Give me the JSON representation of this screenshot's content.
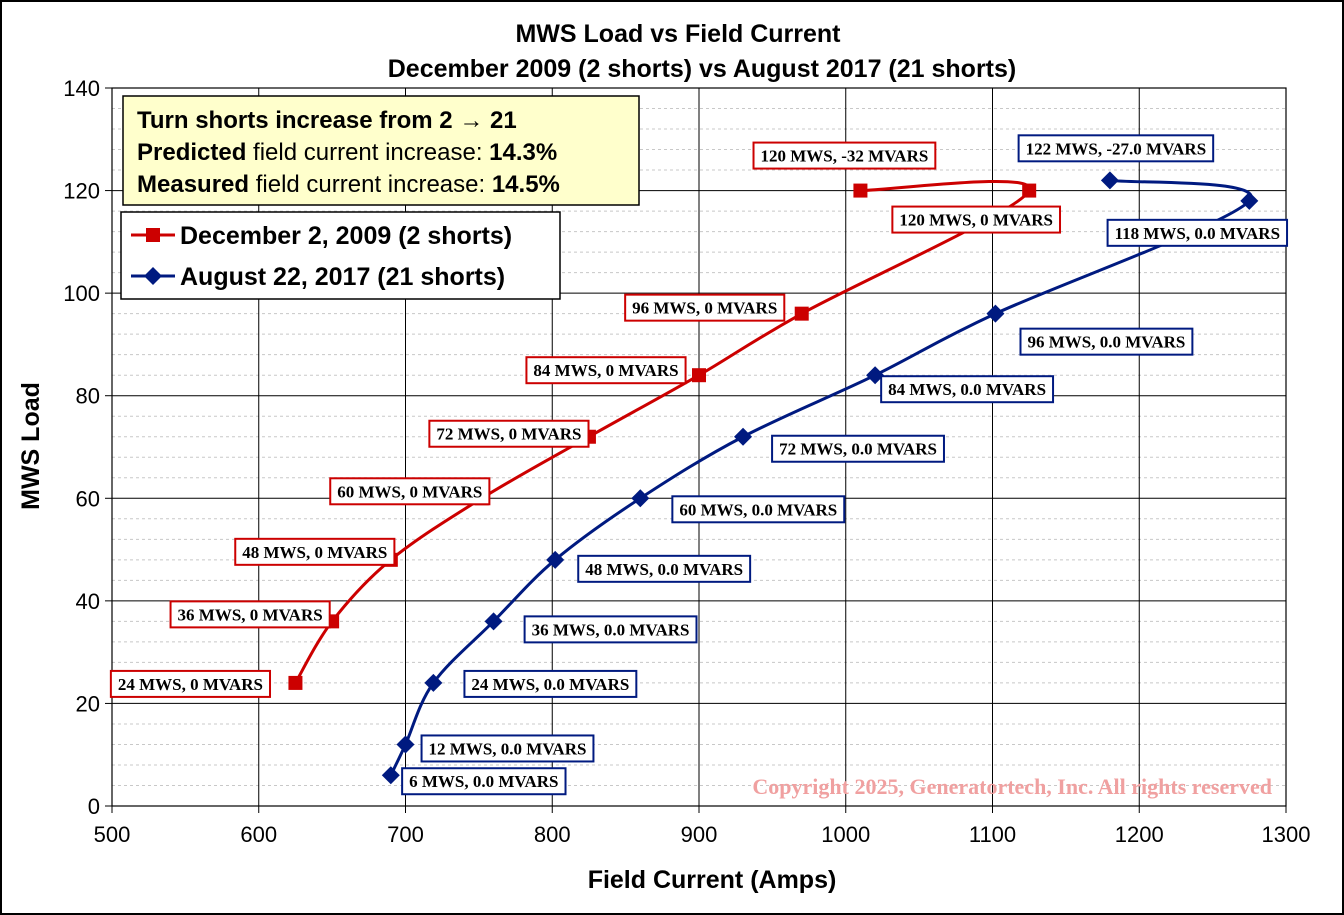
{
  "chart_data": {
    "type": "line",
    "title": "MWS  Load vs Field Current",
    "subtitle": "December 2009 (2 shorts) vs August 2017 (21 shorts)",
    "xlabel": "Field Current (Amps)",
    "ylabel": "MWS Load",
    "xlim": [
      500,
      1300
    ],
    "ylim": [
      0,
      140
    ],
    "xticks": [
      500,
      600,
      700,
      800,
      900,
      1000,
      1100,
      1200,
      1300
    ],
    "yticks": [
      0,
      20,
      40,
      60,
      80,
      100,
      120,
      140
    ],
    "grid": true,
    "legend_position": "top-left",
    "series": [
      {
        "name": "December 2, 2009 (2 shorts)",
        "color": "#cc0000",
        "marker": "square",
        "points": [
          {
            "x": 625,
            "y": 24,
            "label": "24 MWS, 0 MVARS"
          },
          {
            "x": 650,
            "y": 36,
            "label": "36 MWS, 0 MVARS"
          },
          {
            "x": 690,
            "y": 48,
            "label": "48 MWS, 0 MVARS"
          },
          {
            "x": 752,
            "y": 60,
            "label": "60 MWS, 0 MVARS"
          },
          {
            "x": 825,
            "y": 72,
            "label": "72 MWS, 0 MVARS"
          },
          {
            "x": 900,
            "y": 84,
            "label": "84 MWS, 0 MVARS"
          },
          {
            "x": 970,
            "y": 96,
            "label": "96 MWS, 0 MVARS"
          },
          {
            "x": 1125,
            "y": 120,
            "label": "120 MWS, 0 MVARS"
          },
          {
            "x": 1010,
            "y": 120,
            "label": "120 MWS, -32 MVARS"
          }
        ]
      },
      {
        "name": "August 22, 2017 (21 shorts)",
        "color": "#001a80",
        "marker": "diamond",
        "points": [
          {
            "x": 690,
            "y": 6,
            "label": "6 MWS, 0.0 MVARS"
          },
          {
            "x": 700,
            "y": 12,
            "label": "12 MWS, 0.0 MVARS"
          },
          {
            "x": 719,
            "y": 24,
            "label": "24 MWS, 0.0 MVARS"
          },
          {
            "x": 760,
            "y": 36,
            "label": "36 MWS, 0.0 MVARS"
          },
          {
            "x": 802,
            "y": 48,
            "label": "48 MWS, 0.0 MVARS"
          },
          {
            "x": 860,
            "y": 60,
            "label": "60 MWS, 0.0 MVARS"
          },
          {
            "x": 930,
            "y": 72,
            "label": "72 MWS, 0.0 MVARS"
          },
          {
            "x": 1020,
            "y": 84,
            "label": "84 MWS, 0.0 MVARS"
          },
          {
            "x": 1102,
            "y": 96,
            "label": "96 MWS, 0.0 MVARS"
          },
          {
            "x": 1275,
            "y": 118,
            "label": "118 MWS, 0.0 MVARS"
          },
          {
            "x": 1180,
            "y": 122,
            "label": "122 MWS, -27.0 MVARS"
          }
        ]
      }
    ],
    "annotation": {
      "line1": "Turn shorts increase from 2 → 21",
      "line2_bold": "Predicted",
      "line2_rest": " field current increase: ",
      "line2_value": "14.3%",
      "line3_bold": "Measured",
      "line3_rest": " field current increase: ",
      "line3_value": "14.5%"
    },
    "copyright": "Copyright 2025, Generatortech, Inc. All rights reserved"
  }
}
